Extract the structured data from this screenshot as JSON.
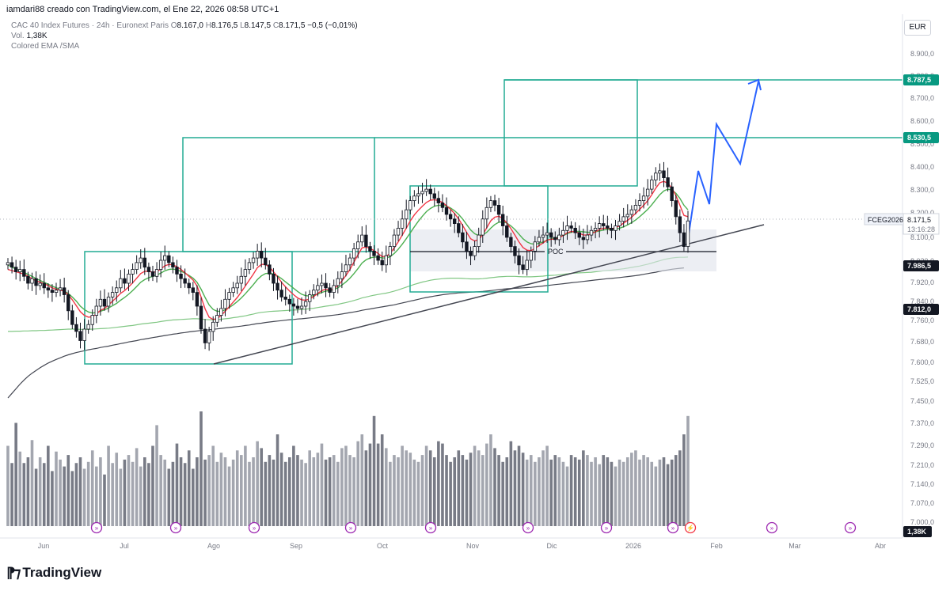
{
  "header": {
    "attribution": "iamdari88 creado con TradingView.com, el Ene 22, 2026 08:58 UTC+1"
  },
  "legend": {
    "symbol": "CAC 40 Index Futures · 24h · Euronext Paris",
    "o_label": "O",
    "o_value": "8.167,0",
    "h_label": "H",
    "h_value": "8.176,5",
    "l_label": "L",
    "l_value": "8.147,5",
    "c_label": "C",
    "c_value": "8.171,5",
    "change": "−0,5 (−0,01%)",
    "volume_label": "Vol.",
    "volume_value": "1,38K",
    "indicator": "Colored EMA /SMA"
  },
  "currency": "EUR",
  "footer": {
    "brand": "TradingView",
    "logo_icon": "tradingview-logo-icon"
  },
  "chart_data": {
    "type": "candlestick",
    "symbol": "FCEG2026",
    "last_price": "8.171,5",
    "countdown": "13:16:28",
    "y_ticks": [
      "8.900,0",
      "8.800,0",
      "8.700,0",
      "8.600,0",
      "8.500,0",
      "8.400,0",
      "8.300,0",
      "8.200,0",
      "8.100,0",
      "8.020,0",
      "7.920,0",
      "7.840,0",
      "7.760,0",
      "7.680,0",
      "7.600,0",
      "7.525,0",
      "7.450,0",
      "7.370,0",
      "7.290,0",
      "7.210,0",
      "7.140,0",
      "7.070,0",
      "7.000,0"
    ],
    "x_ticks": [
      "Jun",
      "Jul",
      "Ago",
      "Sep",
      "Oct",
      "Nov",
      "Dic",
      "2026",
      "Feb",
      "Mar",
      "Abr"
    ],
    "price_labels": [
      {
        "value": "8.787,5",
        "color": "#089981"
      },
      {
        "value": "8.530,5",
        "color": "#089981"
      },
      {
        "value": "7.986,5",
        "color": "#131722"
      },
      {
        "value": "7.812,0",
        "color": "#131722"
      }
    ],
    "poc_label": "POC",
    "volume_label": "1,38K",
    "close_series": [
      7990,
      7970,
      7950,
      7960,
      7930,
      7900,
      7920,
      7890,
      7900,
      7880,
      7870,
      7860,
      7870,
      7880,
      7850,
      7780,
      7720,
      7690,
      7650,
      7700,
      7720,
      7760,
      7800,
      7830,
      7800,
      7840,
      7860,
      7880,
      7920,
      7900,
      7940,
      7960,
      7990,
      8010,
      7970,
      7950,
      7930,
      7960,
      8000,
      8020,
      7990,
      7970,
      7940,
      7920,
      7900,
      7880,
      7860,
      7800,
      7700,
      7640,
      7690,
      7730,
      7760,
      7790,
      7830,
      7860,
      7880,
      7900,
      7930,
      7960,
      7990,
      8010,
      8040,
      8010,
      7980,
      7940,
      7900,
      7870,
      7840,
      7830,
      7810,
      7800,
      7790,
      7800,
      7820,
      7850,
      7870,
      7890,
      7900,
      7880,
      7860,
      7890,
      7920,
      7950,
      7980,
      8010,
      8050,
      8080,
      8110,
      8060,
      8040,
      8020,
      8000,
      7980,
      8020,
      8060,
      8110,
      8140,
      8180,
      8220,
      8260,
      8280,
      8290,
      8300,
      8310,
      8290,
      8270,
      8250,
      8230,
      8200,
      8180,
      8160,
      8120,
      8080,
      8040,
      8020,
      8060,
      8110,
      8180,
      8230,
      8260,
      8240,
      8200,
      8150,
      8100,
      8060,
      8020,
      7980,
      7960,
      8000,
      8040,
      8080,
      8100,
      8110,
      8120,
      8100,
      8090,
      8110,
      8130,
      8150,
      8140,
      8120,
      8100,
      8090,
      8110,
      8130,
      8140,
      8160,
      8150,
      8140,
      8130,
      8150,
      8170,
      8190,
      8200,
      8220,
      8240,
      8260,
      8280,
      8310,
      8350,
      8380,
      8390,
      8360,
      8320,
      8260,
      8190,
      8120,
      8060,
      8171.5
    ],
    "ema_red_series": [
      7960,
      7955,
      7950,
      7945,
      7940,
      7930,
      7920,
      7910,
      7905,
      7898,
      7890,
      7880,
      7874,
      7870,
      7865,
      7850,
      7828,
      7802,
      7776,
      7760,
      7752,
      7754,
      7766,
      7782,
      7790,
      7806,
      7822,
      7838,
      7856,
      7868,
      7884,
      7902,
      7922,
      7942,
      7952,
      7952,
      7948,
      7950,
      7962,
      7976,
      7982,
      7980,
      7972,
      7960,
      7946,
      7930,
      7914,
      7888,
      7840,
      7788,
      7752,
      7742,
      7746,
      7760,
      7778,
      7798,
      7818,
      7838,
      7862,
      7888,
      7914,
      7940,
      7968,
      7982,
      7982,
      7970,
      7950,
      7928,
      7904,
      7884,
      7866,
      7850,
      7836,
      7828,
      7826,
      7832,
      7842,
      7856,
      7868,
      7874,
      7870,
      7876,
      7890,
      7910,
      7934,
      7960,
      7992,
      8024,
      8054,
      8058,
      8052,
      8042,
      8030,
      8016,
      8018,
      8030,
      8054,
      8080,
      8110,
      8140,
      8172,
      8198,
      8218,
      8236,
      8252,
      8262,
      8264,
      8260,
      8252,
      8238,
      8222,
      8204,
      8180,
      8152,
      8122,
      8094,
      8084,
      8090,
      8112,
      8142,
      8172,
      8188,
      8192,
      8182,
      8162,
      8138,
      8110,
      8080,
      8056,
      8044,
      8042,
      8052,
      8064,
      8076,
      8088,
      8092,
      8092,
      8098,
      8108,
      8120,
      8126,
      8124,
      8118,
      8110,
      8110,
      8116,
      8124,
      8134,
      8140,
      8140,
      8138,
      8142,
      8150,
      8162,
      8174,
      8188,
      8204,
      8222,
      8240,
      8260,
      8286,
      8314,
      8338,
      8344,
      8336,
      8314,
      8282,
      8240,
      8196,
      8190
    ],
    "sma_green_series": [
      7980,
      7970,
      7962,
      7955,
      7948,
      7938,
      7930,
      7920,
      7912,
      7904,
      7896,
      7888,
      7880,
      7874,
      7866,
      7855,
      7840,
      7822,
      7800,
      7785,
      7775,
      7770,
      7772,
      7778,
      7784,
      7792,
      7802,
      7812,
      7826,
      7838,
      7852,
      7868,
      7886,
      7904,
      7916,
      7924,
      7930,
      7936,
      7944,
      7954,
      7960,
      7962,
      7958,
      7952,
      7944,
      7934,
      7922,
      7904,
      7874,
      7838,
      7806,
      7786,
      7778,
      7778,
      7784,
      7794,
      7806,
      7820,
      7836,
      7854,
      7874,
      7894,
      7916,
      7932,
      7942,
      7944,
      7940,
      7932,
      7920,
      7906,
      7892,
      7878,
      7864,
      7852,
      7846,
      7844,
      7846,
      7852,
      7860,
      7866,
      7868,
      7872,
      7880,
      7892,
      7906,
      7922,
      7942,
      7964,
      7988,
      8002,
      8010,
      8014,
      8014,
      8010,
      8010,
      8016,
      8030,
      8048,
      8070,
      8094,
      8120,
      8146,
      8170,
      8192,
      8212,
      8226,
      8236,
      8240,
      8240,
      8236,
      8228,
      8216,
      8200,
      8180,
      8156,
      8132,
      8116,
      8108,
      8110,
      8122,
      8140,
      8156,
      8166,
      8168,
      8162,
      8150,
      8134,
      8114,
      8094,
      8080,
      8072,
      8070,
      8074,
      8080,
      8088,
      8094,
      8098,
      8102,
      8108,
      8116,
      8122,
      8126,
      8126,
      8124,
      8122,
      8122,
      8124,
      8128,
      8132,
      8134,
      8134,
      8136,
      8140,
      8146,
      8154,
      8164,
      8176,
      8190,
      8206,
      8222,
      8242,
      8264,
      8286,
      8302,
      8310,
      8306,
      8292,
      8270,
      8240,
      8220
    ],
    "sma_light_green_series": [
      7690,
      7690,
      7691,
      7691,
      7692,
      7692,
      7693,
      7693,
      7694,
      7694,
      7695,
      7696,
      7697,
      7698,
      7699,
      7700,
      7700,
      7700,
      7699,
      7699,
      7699,
      7700,
      7701,
      7702,
      7703,
      7704,
      7706,
      7708,
      7710,
      7712,
      7714,
      7716,
      7719,
      7722,
      7724,
      7726,
      7728,
      7730,
      7733,
      7736,
      7738,
      7740,
      7741,
      7742,
      7743,
      7744,
      7745,
      7745,
      7744,
      7742,
      7741,
      7741,
      7742,
      7743,
      7745,
      7747,
      7750,
      7752,
      7755,
      7758,
      7762,
      7766,
      7770,
      7773,
      7775,
      7777,
      7778,
      7779,
      7780,
      7781,
      7782,
      7783,
      7784,
      7785,
      7787,
      7789,
      7791,
      7794,
      7797,
      7800,
      7802,
      7805,
      7808,
      7812,
      7816,
      7820,
      7825,
      7830,
      7836,
      7840,
      7844,
      7848,
      7851,
      7854,
      7857,
      7861,
      7866,
      7871,
      7877,
      7883,
      7889,
      7895,
      7900,
      7905,
      7909,
      7913,
      7916,
      7918,
      7920,
      7921,
      7922,
      7922,
      7922,
      7921,
      7920,
      7919,
      7919,
      7919,
      7920,
      7922,
      7924,
      7926,
      7928,
      7929,
      7930,
      7930,
      7930,
      7929,
      7928,
      7928,
      7928,
      7929,
      7930,
      7931,
      7933,
      7934,
      7935,
      7937,
      7939,
      7941,
      7943,
      7944,
      7945,
      7946,
      7947,
      7948,
      7950,
      7952,
      7954,
      7956,
      7957,
      7959,
      7961,
      7963,
      7966,
      7969,
      7972,
      7975,
      7979,
      7983,
      7988,
      7993,
      7998,
      8003,
      8007,
      8010,
      8012,
      8013,
      8013,
      8014
    ],
    "sma_dark_series": [
      7400,
      7420,
      7440,
      7460,
      7478,
      7494,
      7508,
      7520,
      7532,
      7542,
      7552,
      7560,
      7568,
      7575,
      7582,
      7588,
      7593,
      7598,
      7602,
      7606,
      7610,
      7613,
      7616,
      7620,
      7623,
      7626,
      7630,
      7633,
      7637,
      7640,
      7644,
      7647,
      7650,
      7654,
      7657,
      7660,
      7663,
      7666,
      7669,
      7672,
      7675,
      7678,
      7680,
      7683,
      7685,
      7688,
      7690,
      7692,
      7694,
      7696,
      7697,
      7699,
      7701,
      7703,
      7705,
      7707,
      7709,
      7711,
      7713,
      7716,
      7718,
      7721,
      7724,
      7726,
      7729,
      7731,
      7733,
      7735,
      7737,
      7739,
      7741,
      7742,
      7744,
      7745,
      7747,
      7749,
      7751,
      7753,
      7755,
      7757,
      7759,
      7761,
      7763,
      7766,
      7769,
      7772,
      7775,
      7778,
      7782,
      7785,
      7788,
      7791,
      7794,
      7797,
      7800,
      7803,
      7806,
      7810,
      7814,
      7818,
      7822,
      7826,
      7830,
      7834,
      7838,
      7841,
      7844,
      7847,
      7850,
      7852,
      7854,
      7856,
      7858,
      7859,
      7860,
      7861,
      7862,
      7863,
      7864,
      7866,
      7868,
      7870,
      7872,
      7874,
      7876,
      7877,
      7878,
      7879,
      7880,
      7881,
      7882,
      7884,
      7886,
      7888,
      7890,
      7892,
      7894,
      7896,
      7898,
      7900,
      7902,
      7904,
      7906,
      7908,
      7910,
      7912,
      7914,
      7916,
      7918,
      7920,
      7921,
      7923,
      7925,
      7927,
      7929,
      7931,
      7933,
      7936,
      7939,
      7942,
      7945,
      7948,
      7952,
      7955,
      7958,
      7961,
      7963,
      7965,
      7967,
      7812
    ],
    "volume_series": [
      70,
      55,
      90,
      65,
      55,
      60,
      75,
      50,
      60,
      55,
      70,
      48,
      65,
      58,
      52,
      62,
      48,
      55,
      60,
      50,
      56,
      66,
      52,
      60,
      45,
      70,
      55,
      64,
      50,
      58,
      62,
      56,
      68,
      52,
      60,
      55,
      70,
      88,
      62,
      58,
      50,
      56,
      72,
      60,
      55,
      66,
      50,
      60,
      100,
      58,
      62,
      70,
      56,
      64,
      60,
      52,
      58,
      66,
      62,
      70,
      56,
      60,
      74,
      68,
      56,
      62,
      58,
      80,
      64,
      56,
      60,
      70,
      62,
      58,
      55,
      66,
      60,
      64,
      72,
      58,
      60,
      62,
      56,
      68,
      70,
      62,
      60,
      74,
      80,
      66,
      72,
      96,
      72,
      80,
      68,
      56,
      62,
      60,
      70,
      66,
      64,
      58,
      56,
      62,
      70,
      66,
      60,
      74,
      72,
      62,
      56,
      60,
      66,
      62,
      58,
      64,
      70,
      66,
      62,
      72,
      80,
      68,
      62,
      56,
      60,
      74,
      66,
      70,
      64,
      58,
      62,
      56,
      60,
      66,
      70,
      58,
      62,
      60,
      56,
      52,
      62,
      60,
      58,
      66,
      62,
      56,
      60,
      54,
      62,
      60,
      56,
      52,
      58,
      56,
      60,
      64,
      66,
      58,
      62,
      60,
      56,
      52,
      58,
      60,
      54,
      58,
      62,
      66,
      80,
      96
    ]
  }
}
